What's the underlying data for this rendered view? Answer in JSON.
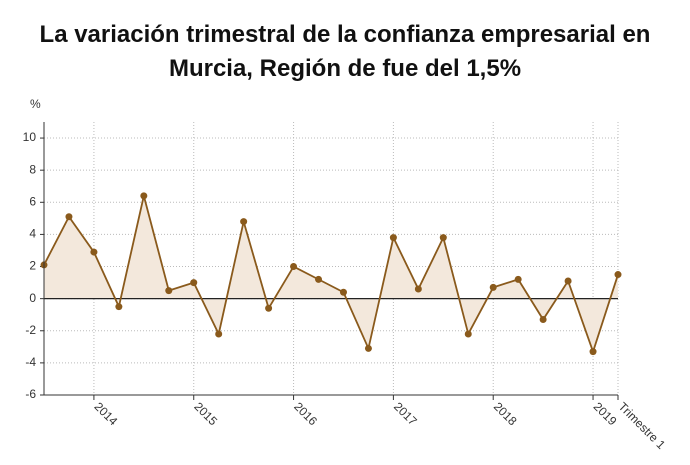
{
  "chart_data": {
    "type": "line",
    "title": "La variación trimestral de la confianza empresarial en Murcia, Región de fue del 1,5%",
    "y_label": "%",
    "categories": [
      null,
      null,
      "2014",
      null,
      null,
      null,
      "2015",
      null,
      null,
      null,
      "2016",
      null,
      null,
      null,
      "2017",
      null,
      null,
      null,
      "2018",
      null,
      null,
      null,
      "2019",
      "Trimestre 1"
    ],
    "values": [
      2.1,
      5.1,
      2.9,
      -0.5,
      6.4,
      0.5,
      1.0,
      -2.2,
      4.8,
      -0.6,
      2.0,
      1.2,
      0.4,
      -3.1,
      3.8,
      0.6,
      3.8,
      -2.2,
      0.7,
      1.2,
      -1.3,
      1.1,
      -3.3,
      1.5
    ],
    "color": "#8a5a1c",
    "area_color": "#f3e8dc",
    "ylim": [
      -6,
      11
    ],
    "yticks": [
      -6,
      -4,
      -2,
      0,
      2,
      4,
      6,
      8,
      10
    ],
    "grid": true
  }
}
